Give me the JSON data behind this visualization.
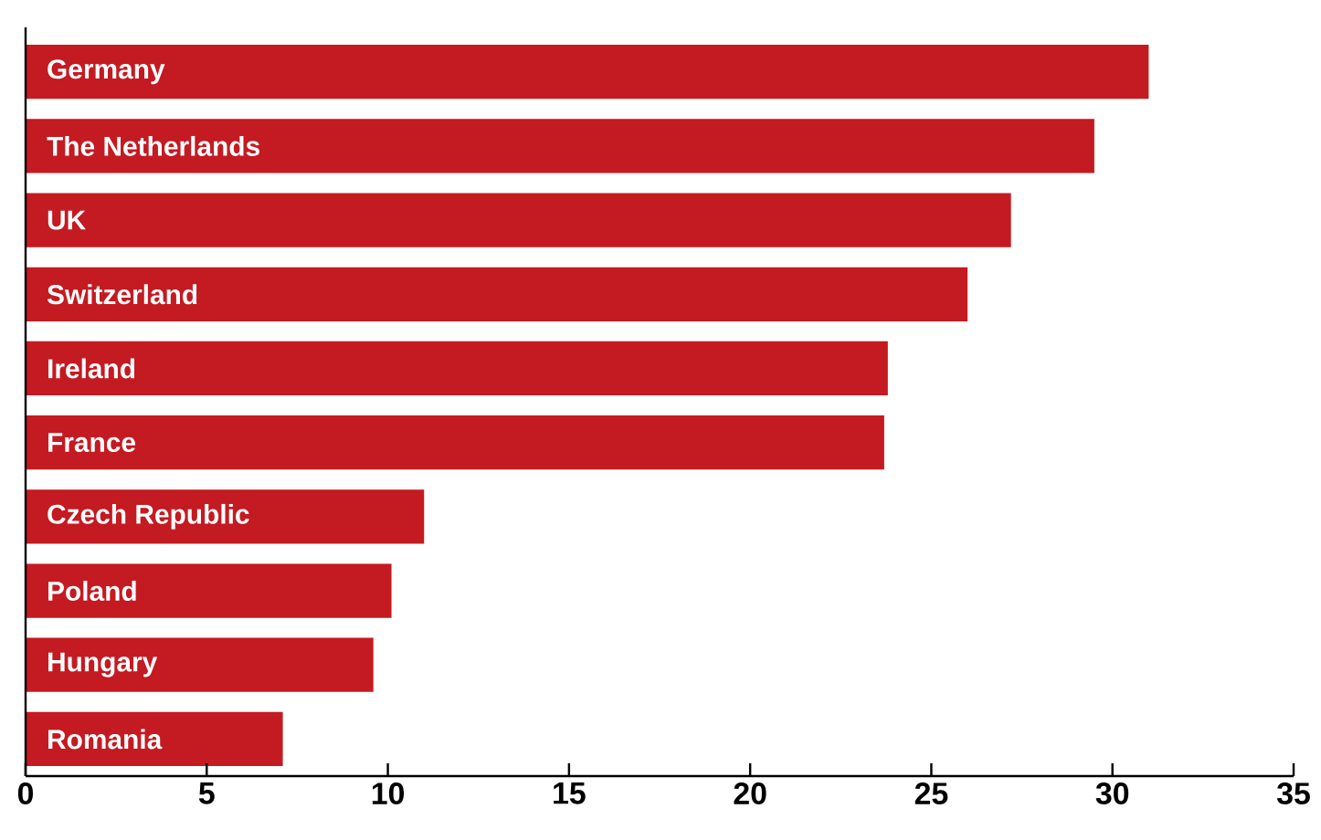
{
  "chart_data": {
    "type": "bar",
    "orientation": "horizontal",
    "categories": [
      "Germany",
      "The Netherlands",
      "UK",
      "Switzerland",
      "Ireland",
      "France",
      "Czech Republic",
      "Poland",
      "Hungary",
      "Romania"
    ],
    "values": [
      31.0,
      29.5,
      27.2,
      26.0,
      23.8,
      23.7,
      11.0,
      10.1,
      9.6,
      7.1
    ],
    "color": "#c41a22",
    "xlim": [
      0,
      35
    ],
    "xticks": [
      0,
      5,
      10,
      15,
      20,
      25,
      30,
      35
    ]
  }
}
